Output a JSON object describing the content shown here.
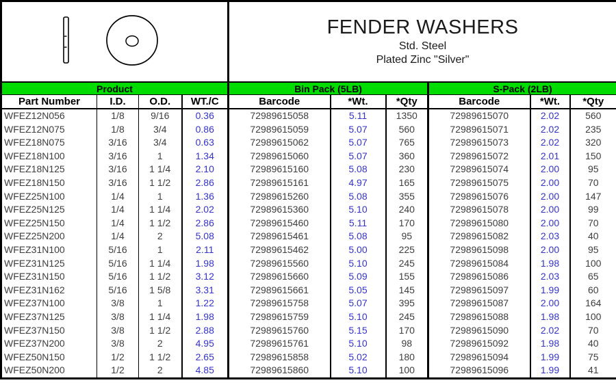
{
  "header": {
    "title": "FENDER WASHERS",
    "subtitle1": "Std. Steel",
    "subtitle2": "Plated Zinc \"Silver\"",
    "icons": [
      "washer-side-view-icon",
      "washer-top-view-icon"
    ]
  },
  "colors": {
    "group_header_bg": "#00DC00",
    "accent_blue": "#3333CC",
    "border_black": "#000000"
  },
  "table": {
    "groups": [
      {
        "label": "Product"
      },
      {
        "label": "Bin Pack (5LB)"
      },
      {
        "label": "S-Pack (2LB)"
      }
    ],
    "columns": [
      "Part Number",
      "I.D.",
      "O.D.",
      "WT./C",
      "Barcode",
      "*Wt.",
      "*Qty",
      "Barcode",
      "*Wt.",
      "*Qty"
    ],
    "rows": [
      [
        "WFEZ12N056",
        "1/8",
        "9/16",
        "0.36",
        "72989615058",
        "5.11",
        "1350",
        "72989615070",
        "2.02",
        "560"
      ],
      [
        "WFEZ12N075",
        "1/8",
        "3/4",
        "0.86",
        "72989615059",
        "5.07",
        "560",
        "72989615071",
        "2.02",
        "235"
      ],
      [
        "WFEZ18N075",
        "3/16",
        "3/4",
        "0.63",
        "72989615062",
        "5.07",
        "765",
        "72989615073",
        "2.02",
        "320"
      ],
      [
        "WFEZ18N100",
        "3/16",
        "1",
        "1.34",
        "72989615060",
        "5.07",
        "360",
        "72989615072",
        "2.01",
        "150"
      ],
      [
        "WFEZ18N125",
        "3/16",
        "1 1/4",
        "2.10",
        "72989615160",
        "5.08",
        "230",
        "72989615074",
        "2.00",
        "95"
      ],
      [
        "WFEZ18N150",
        "3/16",
        "1 1/2",
        "2.86",
        "72989615161",
        "4.97",
        "165",
        "72989615075",
        "2.00",
        "70"
      ],
      [
        "WFEZ25N100",
        "1/4",
        "1",
        "1.36",
        "72989615260",
        "5.08",
        "355",
        "72989615076",
        "2.00",
        "147"
      ],
      [
        "WFEZ25N125",
        "1/4",
        "1 1/4",
        "2.02",
        "72989615360",
        "5.10",
        "240",
        "72989615078",
        "2.00",
        "99"
      ],
      [
        "WFEZ25N150",
        "1/4",
        "1 1/2",
        "2.86",
        "72989615460",
        "5.11",
        "170",
        "72989615080",
        "2.00",
        "70"
      ],
      [
        "WFEZ25N200",
        "1/4",
        "2",
        "5.08",
        "72989615461",
        "5.08",
        "95",
        "72989615082",
        "2.03",
        "40"
      ],
      [
        "WFEZ31N100",
        "5/16",
        "1",
        "2.11",
        "72989615462",
        "5.00",
        "225",
        "72989615098",
        "2.00",
        "95"
      ],
      [
        "WFEZ31N125",
        "5/16",
        "1 1/4",
        "1.98",
        "72989615560",
        "5.10",
        "245",
        "72989615084",
        "1.98",
        "100"
      ],
      [
        "WFEZ31N150",
        "5/16",
        "1 1/2",
        "3.12",
        "72989615660",
        "5.09",
        "155",
        "72989615086",
        "2.03",
        "65"
      ],
      [
        "WFEZ31N162",
        "5/16",
        "1 5/8",
        "3.31",
        "72989615661",
        "5.05",
        "145",
        "72989615097",
        "1.99",
        "60"
      ],
      [
        "WFEZ37N100",
        "3/8",
        "1",
        "1.22",
        "72989615758",
        "5.07",
        "395",
        "72989615087",
        "2.00",
        "164"
      ],
      [
        "WFEZ37N125",
        "3/8",
        "1 1/4",
        "1.98",
        "72989615759",
        "5.10",
        "245",
        "72989615088",
        "1.98",
        "100"
      ],
      [
        "WFEZ37N150",
        "3/8",
        "1 1/2",
        "2.88",
        "72989615760",
        "5.15",
        "170",
        "72989615090",
        "2.02",
        "70"
      ],
      [
        "WFEZ37N200",
        "3/8",
        "2",
        "4.95",
        "72989615761",
        "5.10",
        "98",
        "72989615092",
        "1.98",
        "40"
      ],
      [
        "WFEZ50N150",
        "1/2",
        "1 1/2",
        "2.65",
        "72989615858",
        "5.02",
        "180",
        "72989615094",
        "1.99",
        "75"
      ],
      [
        "WFEZ50N200",
        "1/2",
        "2",
        "4.85",
        "72989615860",
        "5.10",
        "100",
        "72989615096",
        "1.99",
        "41"
      ]
    ]
  }
}
